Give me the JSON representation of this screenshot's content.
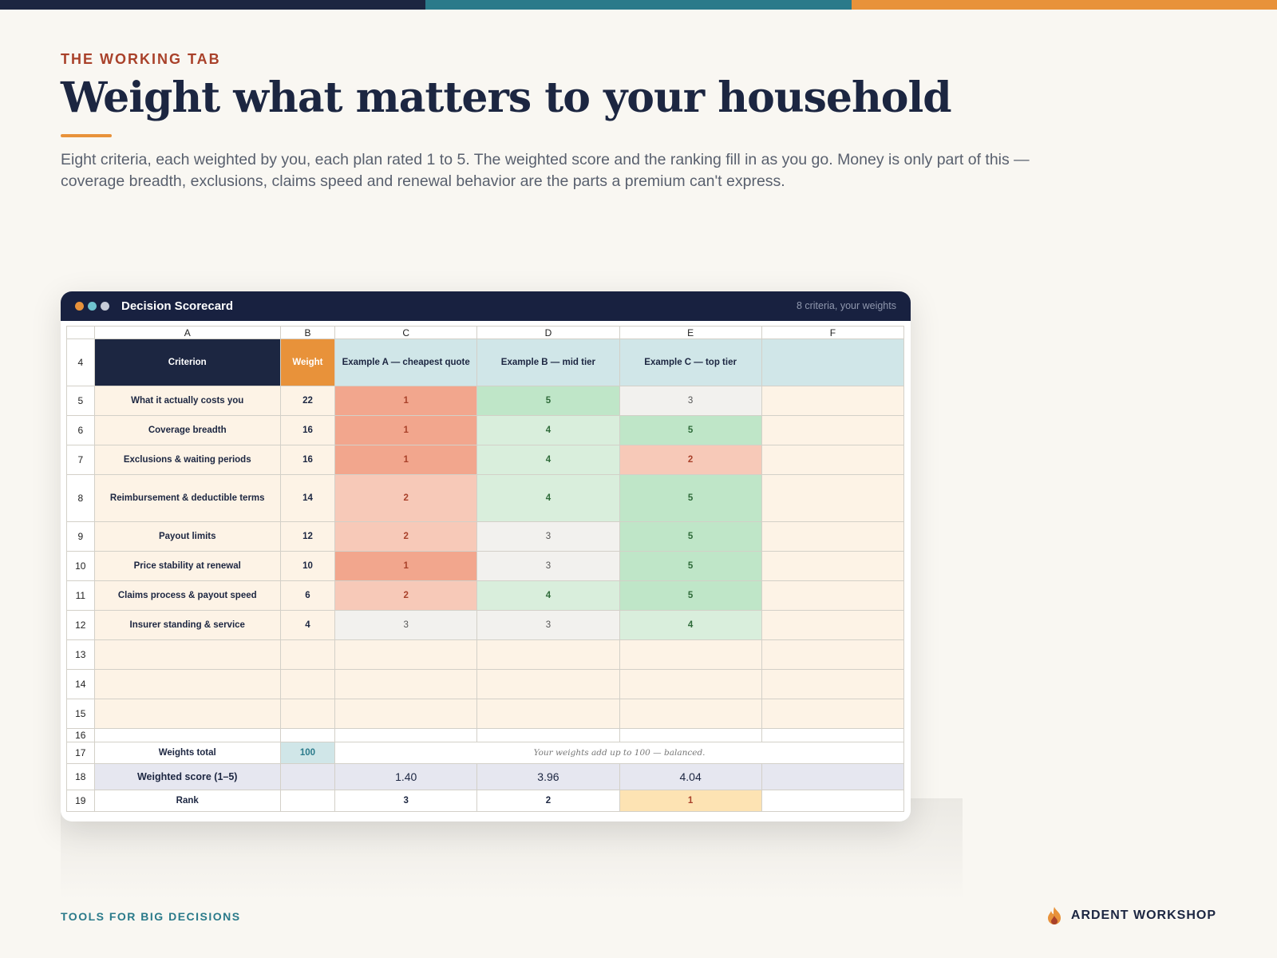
{
  "colors": {
    "navy": "#1c2641",
    "teal": "#2a7a8a",
    "orange": "#e8923a",
    "rust": "#a9412a"
  },
  "eyebrow": "THE WORKING TAB",
  "title": "Weight what matters to your household",
  "lede": "Eight criteria, each weighted by you, each plan rated 1 to 5. The weighted score and the ranking fill in as you go. Money is only part of this — coverage breadth, exclusions, claims speed and renewal behavior are the parts a premium can't express.",
  "window": {
    "title": "Decision Scorecard",
    "meta": "8 criteria, your weights"
  },
  "sheet": {
    "columns": [
      "A",
      "B",
      "C",
      "D",
      "E",
      "F"
    ],
    "header_row": "4",
    "headers": {
      "criterion": "Criterion",
      "weight": "Weight",
      "plan_a": "Example A — cheapest quote",
      "plan_b": "Example B — mid tier",
      "plan_c": "Example C — top tier"
    },
    "rows": [
      {
        "n": "5",
        "criterion": "What it actually costs you",
        "weight": "22",
        "a": "1",
        "b": "5",
        "c": "3"
      },
      {
        "n": "6",
        "criterion": "Coverage breadth",
        "weight": "16",
        "a": "1",
        "b": "4",
        "c": "5"
      },
      {
        "n": "7",
        "criterion": "Exclusions & waiting periods",
        "weight": "16",
        "a": "1",
        "b": "4",
        "c": "2"
      },
      {
        "n": "8",
        "criterion": "Reimbursement & deductible terms",
        "weight": "14",
        "a": "2",
        "b": "4",
        "c": "5"
      },
      {
        "n": "9",
        "criterion": "Payout limits",
        "weight": "12",
        "a": "2",
        "b": "3",
        "c": "5"
      },
      {
        "n": "10",
        "criterion": "Price stability at renewal",
        "weight": "10",
        "a": "1",
        "b": "3",
        "c": "5"
      },
      {
        "n": "11",
        "criterion": "Claims process & payout speed",
        "weight": "6",
        "a": "2",
        "b": "4",
        "c": "5"
      },
      {
        "n": "12",
        "criterion": "Insurer standing & service",
        "weight": "4",
        "a": "3",
        "b": "3",
        "c": "4"
      }
    ],
    "empty_rows": [
      "13",
      "14",
      "15",
      "16"
    ],
    "totals": {
      "n": "17",
      "label": "Weights total",
      "value": "100",
      "note": "Your weights add up to 100 — balanced."
    },
    "score": {
      "n": "18",
      "label": "Weighted score (1–5)",
      "a": "1.40",
      "b": "3.96",
      "c": "4.04"
    },
    "rank": {
      "n": "19",
      "label": "Rank",
      "a": "3",
      "b": "2",
      "c": "1"
    }
  },
  "footer": {
    "tagline": "TOOLS FOR BIG DECISIONS",
    "brand": "ARDENT WORKSHOP",
    "brand_icon": "flame-icon"
  }
}
